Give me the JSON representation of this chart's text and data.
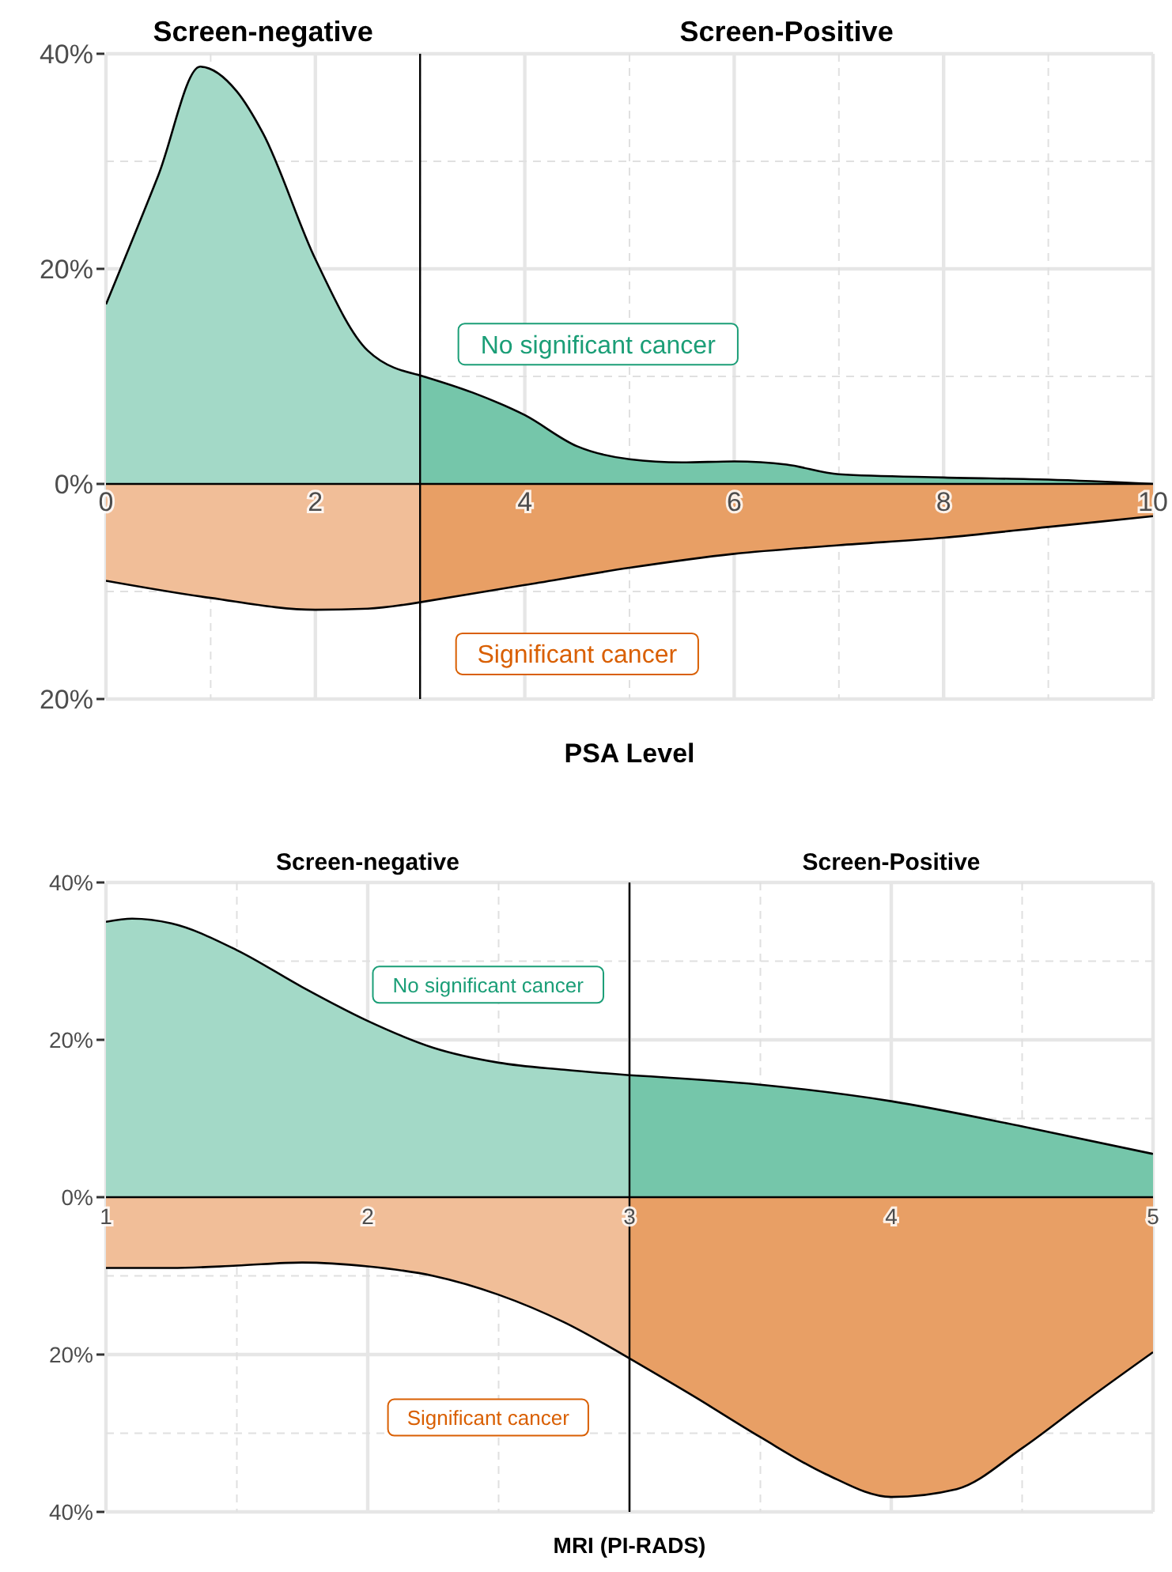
{
  "chart_data": [
    {
      "type": "area",
      "xlabel": "PSA Level",
      "xlim": [
        0,
        10
      ],
      "ylim": [
        -20,
        40
      ],
      "xticks": [
        0,
        {
          "value": 1,
          "label": null
        },
        2,
        {
          "value": 3,
          "label": null
        },
        4,
        {
          "value": 5,
          "label": null
        },
        6,
        {
          "value": 7,
          "label": null
        },
        8,
        {
          "value": 9,
          "label": null
        },
        10
      ],
      "yticks": [
        {
          "value": -20,
          "label": "20%"
        },
        {
          "value": -10,
          "label": null
        },
        {
          "value": 0,
          "label": "0%"
        },
        {
          "value": 10,
          "label": null
        },
        {
          "value": 20,
          "label": "20%"
        },
        {
          "value": 30,
          "label": null
        },
        {
          "value": 40,
          "label": "40%"
        }
      ],
      "grid": true,
      "series": [
        {
          "color": "#a3d9c7",
          "x": [
            0,
            0.5,
            0.9,
            1.25,
            1.5,
            2,
            2.5,
            3
          ],
          "values": [
            16.7,
            28.7,
            38.8,
            36.5,
            32.6,
            20.9,
            12.4,
            10.1
          ]
        },
        {
          "color": "#75c6aa",
          "x": [
            3,
            3.5,
            4,
            4.5,
            5,
            5.5,
            6,
            6.5,
            7,
            8,
            9,
            10
          ],
          "values": [
            10.1,
            8.5,
            6.4,
            3.5,
            2.3,
            2.0,
            2.1,
            1.8,
            0.9,
            0.6,
            0.4,
            0
          ]
        },
        {
          "color": "#f1be98",
          "x": [
            0,
            1,
            2,
            2.5,
            3
          ],
          "values": [
            -9.0,
            -10.6,
            -11.7,
            -11.6,
            -11.0
          ]
        },
        {
          "color": "#e89f65",
          "x": [
            3,
            4,
            5,
            6,
            7,
            8,
            9,
            10
          ],
          "values": [
            -11.0,
            -9.4,
            -7.8,
            -6.5,
            -5.7,
            -5.0,
            -4.0,
            -3.0
          ]
        }
      ],
      "ref_lines": [
        {
          "axis": "x",
          "value": 3
        }
      ],
      "annotations": [
        "Screen-negative",
        "Screen-Positive",
        "No significant cancer",
        "Significant cancer"
      ]
    },
    {
      "type": "area",
      "xlabel": "MRI (PI-RADS)",
      "xlim": [
        1,
        5
      ],
      "ylim": [
        -40,
        40
      ],
      "xticks": [
        1,
        {
          "value": 1.5,
          "label": null
        },
        2,
        {
          "value": 2.5,
          "label": null
        },
        3,
        {
          "value": 3.5,
          "label": null
        },
        4,
        {
          "value": 4.5,
          "label": null
        },
        5
      ],
      "yticks": [
        {
          "value": -40,
          "label": "40%"
        },
        {
          "value": -30,
          "label": null
        },
        {
          "value": -20,
          "label": "20%"
        },
        {
          "value": -10,
          "label": null
        },
        {
          "value": 0,
          "label": "0%"
        },
        {
          "value": 10,
          "label": null
        },
        {
          "value": 20,
          "label": "20%"
        },
        {
          "value": 30,
          "label": null
        },
        {
          "value": 40,
          "label": "40%"
        }
      ],
      "grid": true,
      "series": [
        {
          "color": "#a3d9c7",
          "x": [
            1,
            1.1,
            1.25,
            1.5,
            1.75,
            2,
            2.25,
            2.5,
            2.75,
            3
          ],
          "values": [
            35.0,
            35.4,
            34.8,
            31.4,
            26.7,
            22.4,
            19.0,
            17.1,
            16.2,
            15.5
          ]
        },
        {
          "color": "#75c6aa",
          "x": [
            3,
            3.5,
            4,
            4.5,
            5
          ],
          "values": [
            15.5,
            14.3,
            12.2,
            9.0,
            5.5
          ]
        },
        {
          "color": "#f1be98",
          "x": [
            1,
            1.25,
            1.5,
            1.75,
            2,
            2.25,
            2.5,
            2.75,
            3
          ],
          "values": [
            -9.0,
            -9.0,
            -8.7,
            -8.3,
            -8.8,
            -10.0,
            -12.4,
            -15.9,
            -20.5
          ]
        },
        {
          "color": "#e89f65",
          "x": [
            3,
            3.25,
            3.5,
            3.75,
            4,
            4.25,
            4.5,
            4.75,
            5
          ],
          "values": [
            -20.5,
            -25.4,
            -30.5,
            -35.2,
            -38.1,
            -37.1,
            -31.9,
            -25.7,
            -19.7
          ]
        }
      ],
      "ref_lines": [
        {
          "axis": "x",
          "value": 3
        }
      ],
      "annotations": [
        "Screen-negative",
        "Screen-Positive",
        "No significant cancer",
        "Significant cancer"
      ]
    }
  ]
}
